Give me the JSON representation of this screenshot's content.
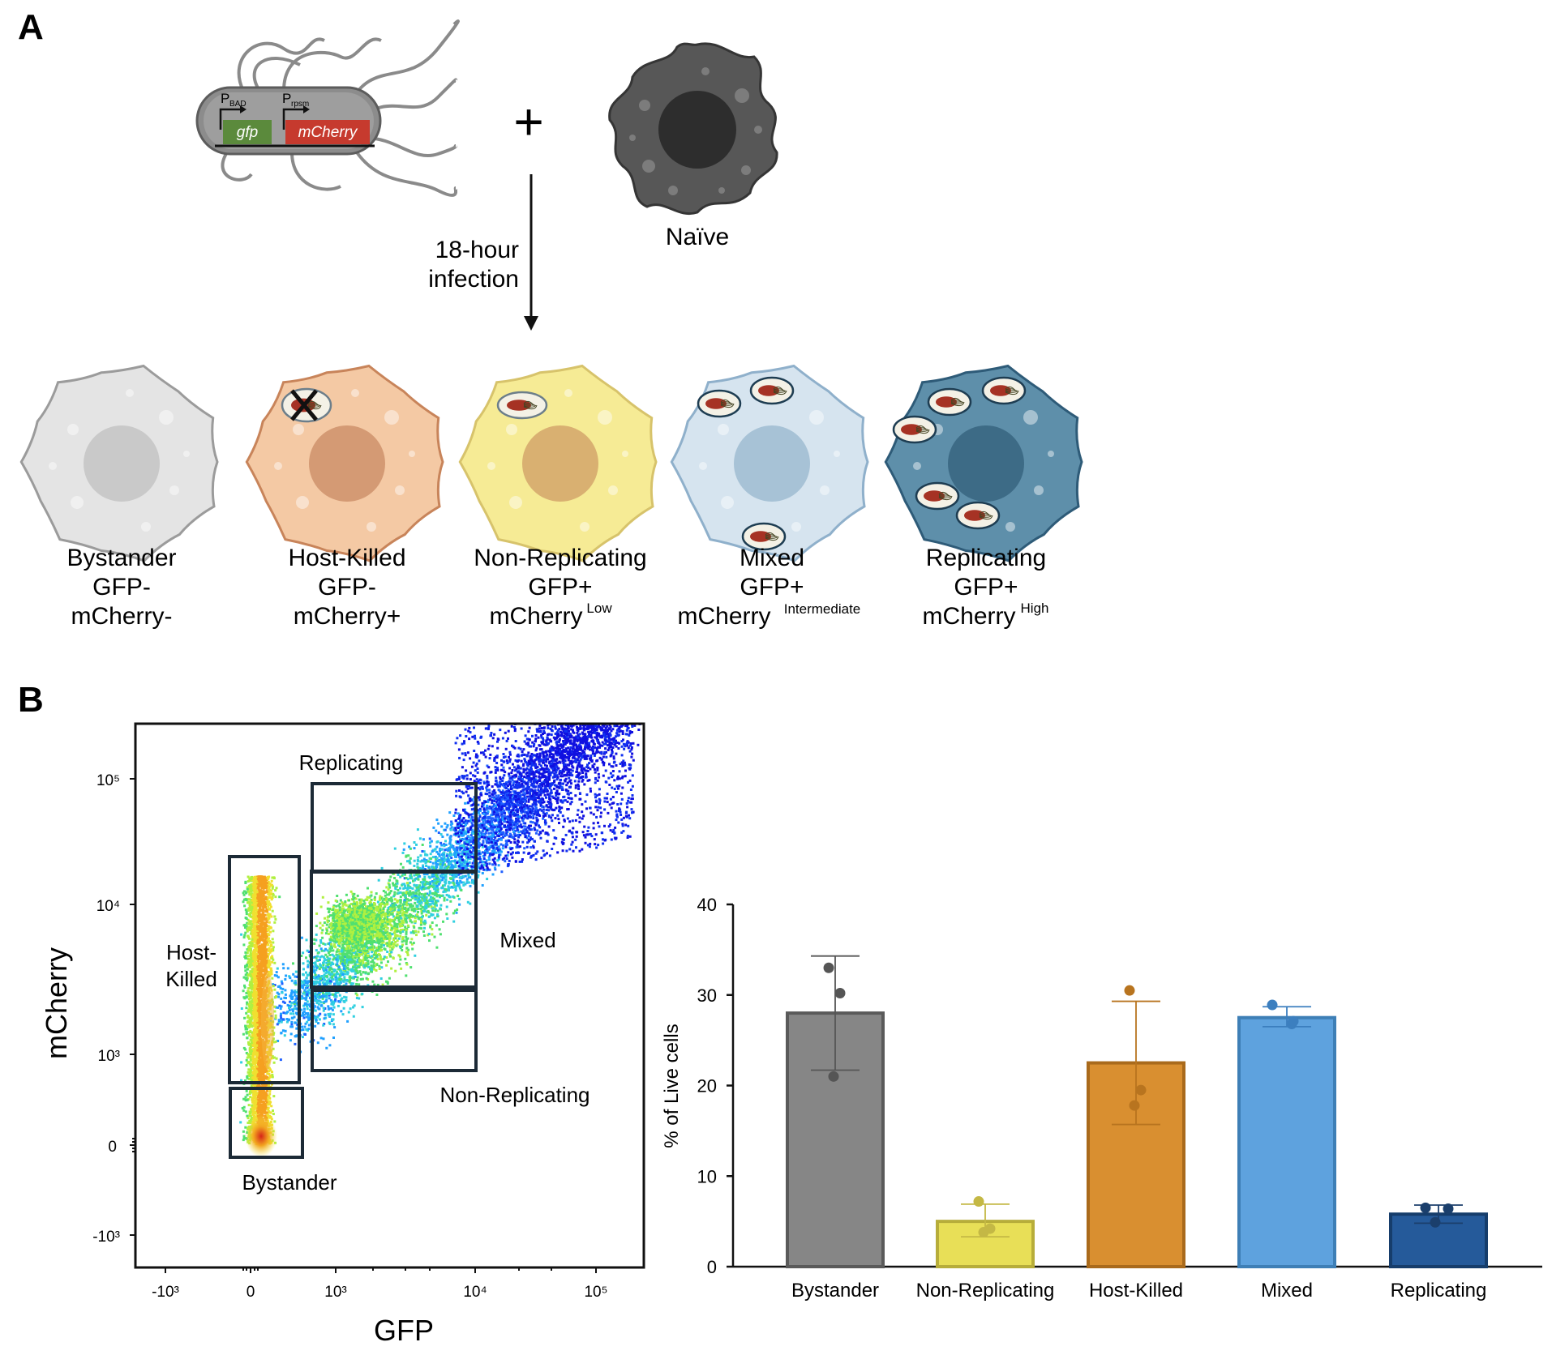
{
  "panel_a": {
    "label": "A",
    "plus": "+",
    "bacterium": {
      "promoter1": "P",
      "promoter1_sub": "BAD",
      "promoter2": "P",
      "promoter2_sub": "rpsm",
      "gene1": "gfp",
      "gene2": "mCherry",
      "gene1_color": "#5b8a3c",
      "gene2_color": "#c63a2e"
    },
    "naive_label": "Naïve",
    "arrow_label_line1": "18-hour",
    "arrow_label_line2": "infection",
    "cells": [
      {
        "name": "Bystander",
        "line2": "GFP-",
        "line3_main": "mCherry-",
        "line3_sup": "",
        "fill": "#e4e4e4",
        "stroke": "#9b9b9b",
        "nucleus": "#c9c9c9"
      },
      {
        "name": "Host-Killed",
        "line2": "GFP-",
        "line3_main": "mCherry+",
        "line3_sup": "",
        "fill": "#f4c9a4",
        "stroke": "#c8845a",
        "nucleus": "#d49a74"
      },
      {
        "name": "Non-Replicating",
        "line2": "GFP+",
        "line3_main": "mCherry",
        "line3_sup": "Low",
        "fill": "#f6eb95",
        "stroke": "#d7c36b",
        "nucleus": "#d9b071"
      },
      {
        "name": "Mixed",
        "line2": "GFP+",
        "line3_main": "mCherry",
        "line3_sup": "Intermediate",
        "fill": "#d6e4ef",
        "stroke": "#8fb0cb",
        "nucleus": "#a7c2d6"
      },
      {
        "name": "Replicating",
        "line2": "GFP+",
        "line3_main": "mCherry",
        "line3_sup": "High",
        "fill": "#5e8faa",
        "stroke": "#2e5b78",
        "nucleus": "#3d6b86"
      }
    ]
  },
  "panel_b": {
    "label": "B",
    "flow": {
      "xlabel": "GFP",
      "ylabel": "mCherry",
      "x_ticks": [
        "-10³",
        "0",
        "10³",
        "10⁴",
        "10⁵"
      ],
      "y_ticks": [
        "10⁵",
        "10⁴",
        "10³",
        "0",
        "-10³"
      ],
      "gates": [
        "Replicating",
        "Host-",
        "Killed",
        "Mixed",
        "Non-Replicating",
        "Bystander"
      ]
    },
    "chart_data": {
      "type": "bar",
      "categories": [
        "Bystander",
        "Non-Replicating",
        "Host-Killed",
        "Mixed",
        "Replicating"
      ],
      "values": [
        28,
        5,
        22.5,
        27.5,
        5.8
      ],
      "error_upper": [
        34.3,
        6.9,
        29.3,
        28.7,
        6.8
      ],
      "error_lower": [
        21.7,
        3.3,
        15.7,
        26.5,
        4.8
      ],
      "points": [
        [
          33,
          30.2,
          21
        ],
        [
          7.2,
          4.2,
          3.8
        ],
        [
          30.5,
          19.5,
          17.8
        ],
        [
          28.9,
          26.8,
          27.1
        ],
        [
          6.5,
          6.4,
          4.9
        ]
      ],
      "colors": [
        "#868686",
        "#e8df57",
        "#d98f30",
        "#5ea2de",
        "#255a9a"
      ],
      "edge_colors": [
        "#5a5a5a",
        "#b7ad3a",
        "#a96a1c",
        "#3e7fb6",
        "#163d6b"
      ],
      "point_colors": [
        "#555555",
        "#c4b845",
        "#b8741f",
        "#3c7fbf",
        "#1b3f6c"
      ],
      "ylabel": "% of Live cells",
      "ylim": [
        0,
        40
      ],
      "yticks": [
        "0",
        "10",
        "20",
        "30",
        "40"
      ]
    }
  }
}
